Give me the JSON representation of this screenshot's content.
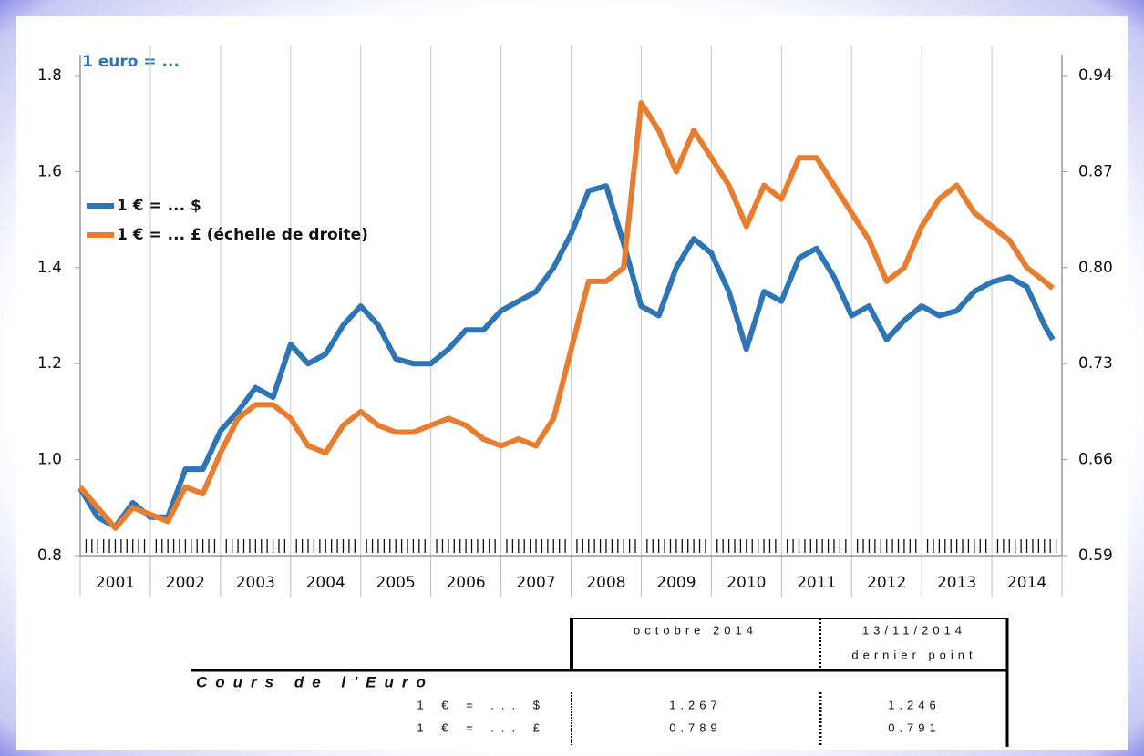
{
  "chart_data": {
    "type": "line",
    "title": "1 euro = ...",
    "categories": [
      "2001",
      "2002",
      "2003",
      "2004",
      "2005",
      "2006",
      "2007",
      "2008",
      "2009",
      "2010",
      "2011",
      "2012",
      "2013",
      "2014"
    ],
    "x": [
      2001,
      2001.25,
      2001.5,
      2001.75,
      2002,
      2002.25,
      2002.5,
      2002.75,
      2003,
      2003.25,
      2003.5,
      2003.75,
      2004,
      2004.25,
      2004.5,
      2004.75,
      2005,
      2005.25,
      2005.5,
      2005.75,
      2006,
      2006.25,
      2006.5,
      2006.75,
      2007,
      2007.25,
      2007.5,
      2007.75,
      2008,
      2008.25,
      2008.5,
      2008.75,
      2009,
      2009.25,
      2009.5,
      2009.75,
      2010,
      2010.25,
      2010.5,
      2010.75,
      2011,
      2011.25,
      2011.5,
      2011.75,
      2012,
      2012.25,
      2012.5,
      2012.75,
      2013,
      2013.25,
      2013.5,
      2013.75,
      2014,
      2014.25,
      2014.5,
      2014.75,
      2014.87
    ],
    "xlim": [
      2001,
      2015
    ],
    "series": [
      {
        "name": "1 € = ... $",
        "color": "#2e75b6",
        "values": [
          0.94,
          0.88,
          0.86,
          0.91,
          0.88,
          0.88,
          0.98,
          0.98,
          1.06,
          1.1,
          1.15,
          1.13,
          1.24,
          1.2,
          1.22,
          1.28,
          1.32,
          1.28,
          1.21,
          1.2,
          1.2,
          1.23,
          1.27,
          1.27,
          1.31,
          1.33,
          1.35,
          1.4,
          1.47,
          1.56,
          1.57,
          1.45,
          1.32,
          1.3,
          1.4,
          1.46,
          1.43,
          1.35,
          1.23,
          1.35,
          1.33,
          1.42,
          1.44,
          1.38,
          1.3,
          1.32,
          1.25,
          1.29,
          1.32,
          1.3,
          1.31,
          1.35,
          1.37,
          1.38,
          1.36,
          1.28,
          1.25
        ]
      },
      {
        "name": "1 € = ... £ (échelle de droite)",
        "color": "#e87d2f",
        "axis": "y2",
        "values": [
          0.64,
          0.625,
          0.61,
          0.625,
          0.62,
          0.615,
          0.64,
          0.635,
          0.665,
          0.69,
          0.7,
          0.7,
          0.69,
          0.67,
          0.665,
          0.685,
          0.695,
          0.685,
          0.68,
          0.68,
          0.685,
          0.69,
          0.685,
          0.675,
          0.67,
          0.675,
          0.67,
          0.69,
          0.74,
          0.79,
          0.79,
          0.8,
          0.92,
          0.9,
          0.87,
          0.9,
          0.88,
          0.86,
          0.83,
          0.86,
          0.85,
          0.88,
          0.88,
          0.86,
          0.84,
          0.82,
          0.79,
          0.8,
          0.83,
          0.85,
          0.86,
          0.84,
          0.83,
          0.82,
          0.8,
          0.79,
          0.785
        ]
      }
    ],
    "ylim": [
      0.8,
      1.8
    ],
    "yticks": [
      0.8,
      {
        "value": 1,
        "label": "1.0"
      },
      1.2,
      1.4,
      1.6,
      1.8
    ],
    "y2lim": [
      0.59,
      0.94
    ],
    "y2ticks": [
      0.59,
      0.66,
      0.73,
      {
        "value": 0.8,
        "label": "0.80"
      },
      0.87,
      0.94
    ],
    "grid": true,
    "legend": "upper left"
  },
  "table": {
    "title": "Cours de l'Euro",
    "columns": [
      [
        "octobre 2014"
      ],
      [
        "13/11/2014",
        "dernier point"
      ]
    ],
    "rows": [
      [
        "1 € = ... $",
        "1.267",
        "1.246"
      ],
      [
        "1 € = ... £",
        "0.789",
        "0.791"
      ]
    ]
  }
}
